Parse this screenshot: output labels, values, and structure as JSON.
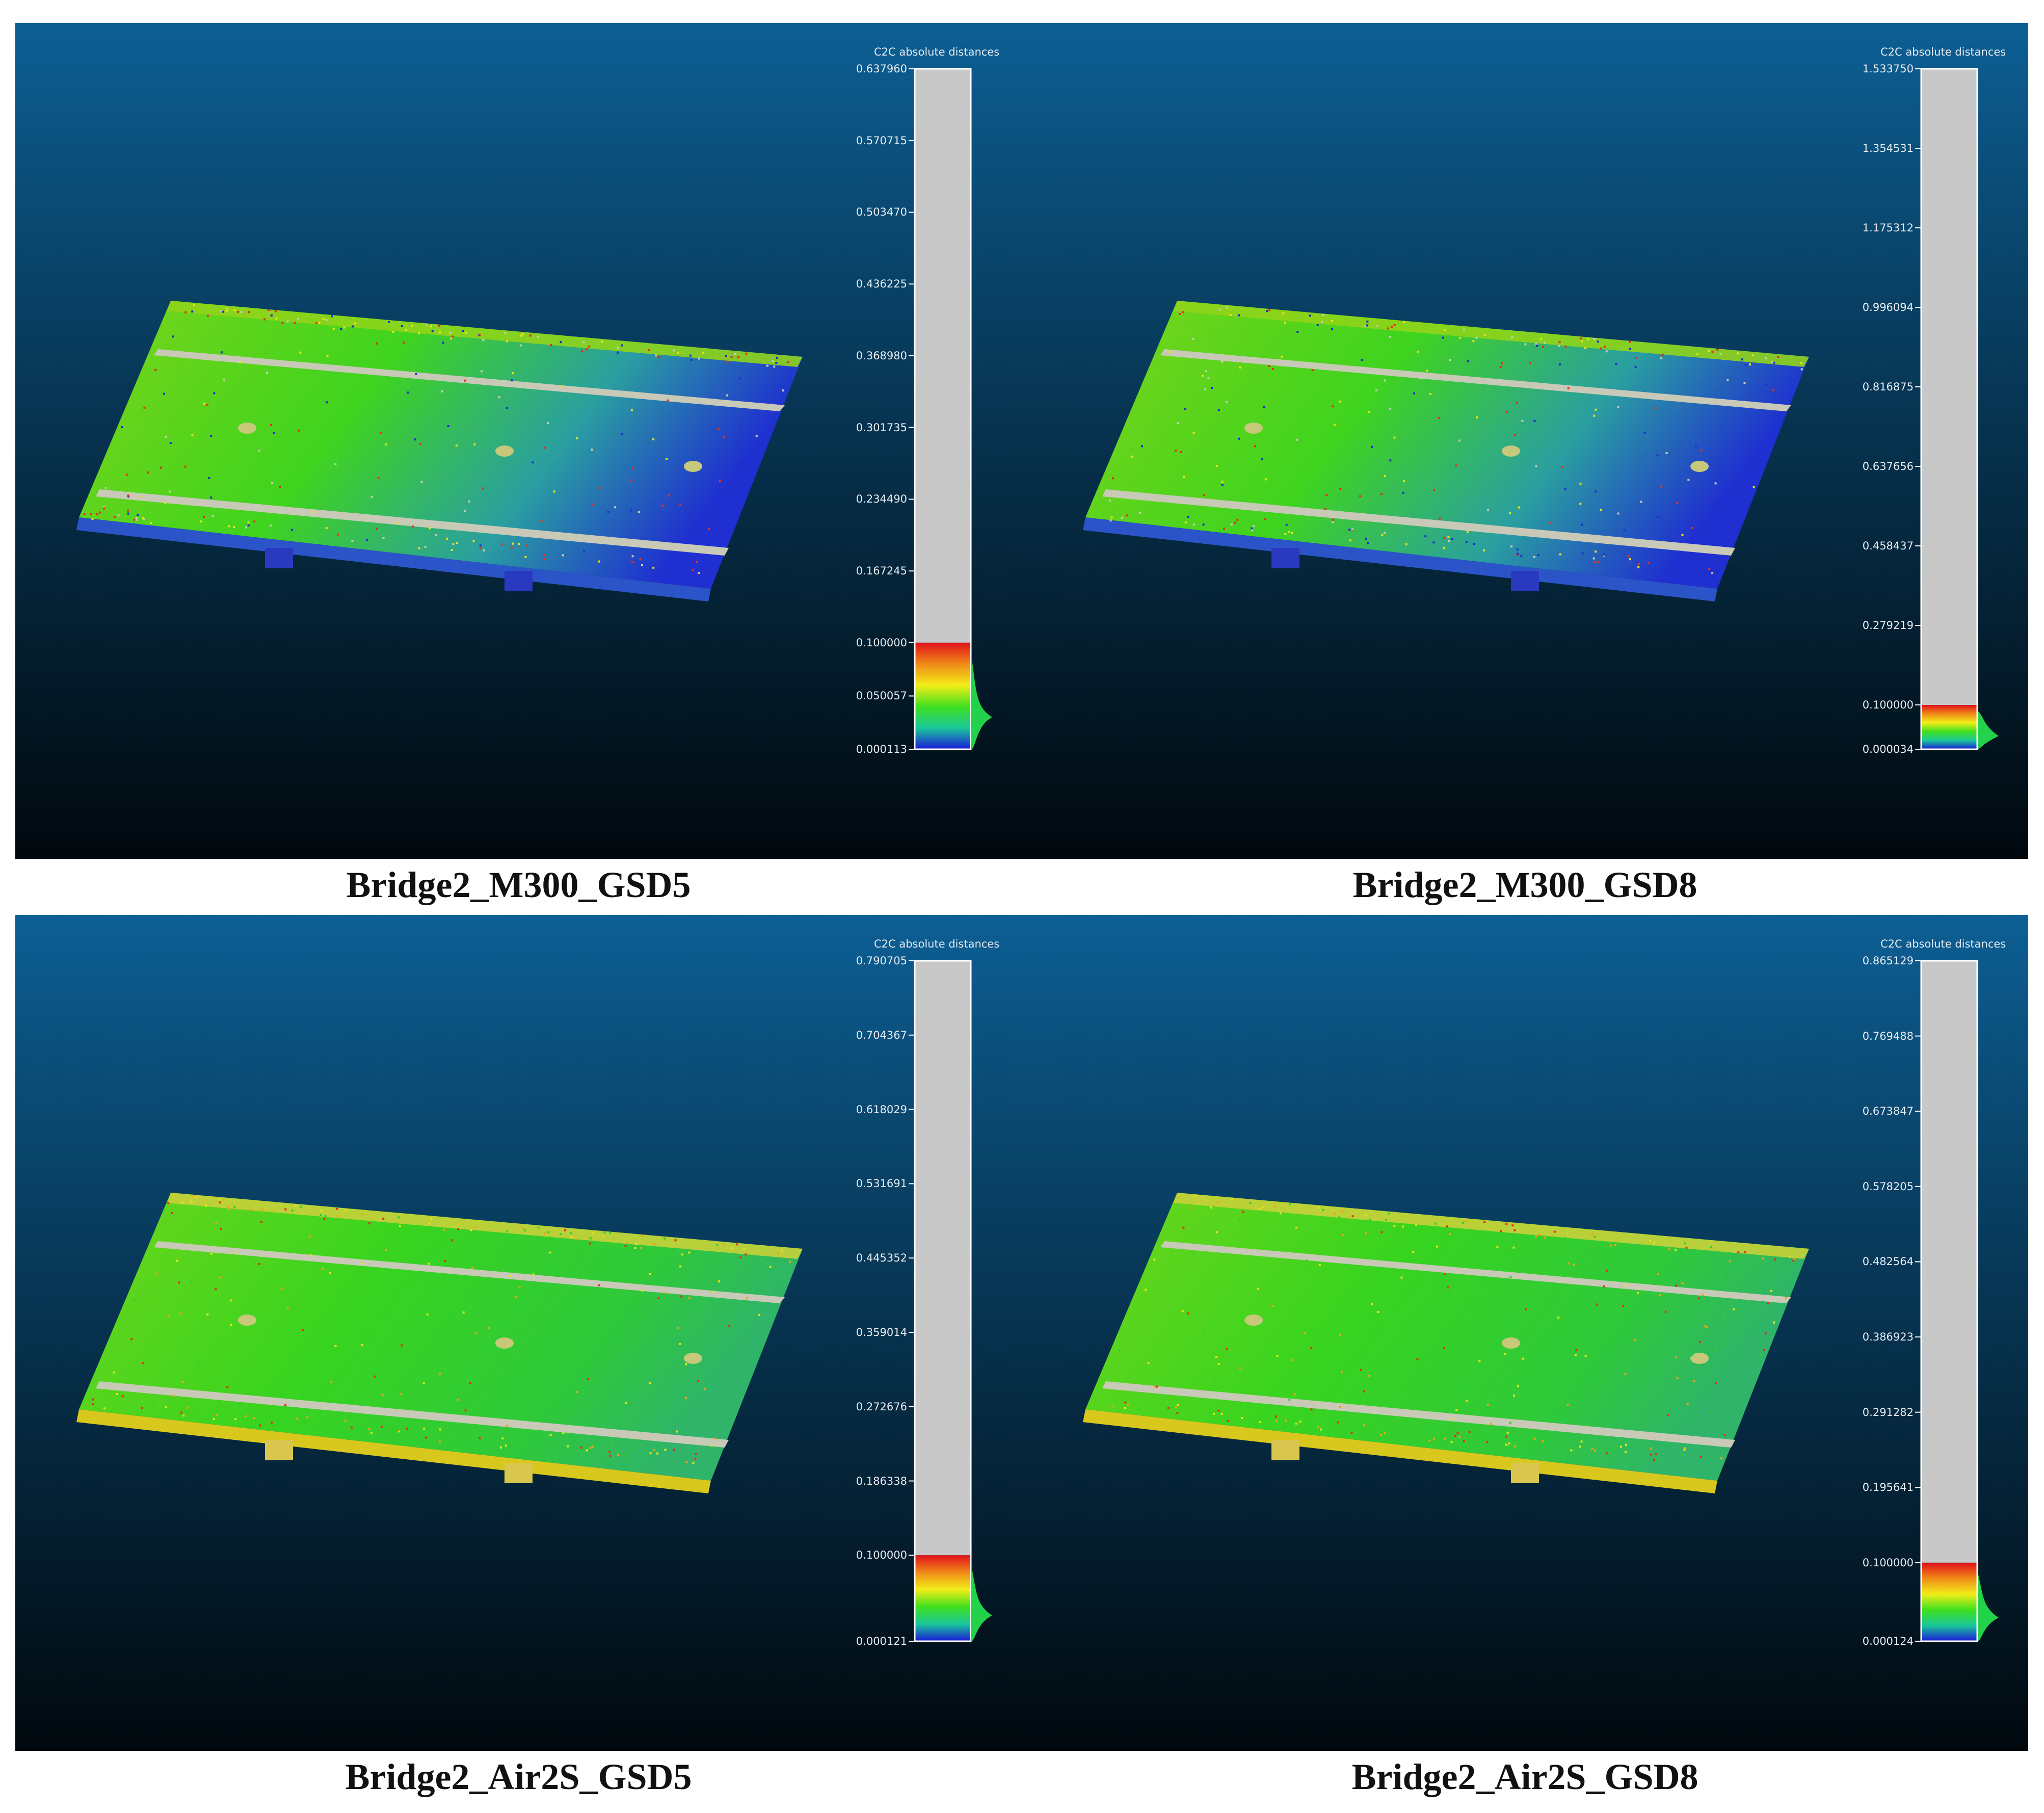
{
  "panels": [
    {
      "caption": "Bridge2_M300_GSD5",
      "scalar_bar": {
        "title": "C2C absolute distances",
        "ticks": [
          "0.637960",
          "0.570715",
          "0.503470",
          "0.436225",
          "0.368980",
          "0.301735",
          "0.234490",
          "0.167245",
          "0.100000",
          "0.050057",
          "0.000113"
        ],
        "max": 0.63796,
        "min": 0.000113,
        "colored_threshold": 0.1
      }
    },
    {
      "caption": "Bridge2_M300_GSD8",
      "scalar_bar": {
        "title": "C2C absolute distances",
        "ticks": [
          "1.533750",
          "1.354531",
          "1.175312",
          "0.996094",
          "0.816875",
          "0.637656",
          "0.458437",
          "0.279219",
          "0.100000",
          "0.000034"
        ],
        "max": 1.53375,
        "min": 3.4e-05,
        "colored_threshold": 0.1
      }
    },
    {
      "caption": "Bridge2_Air2S_GSD5",
      "scalar_bar": {
        "title": "C2C absolute distances",
        "ticks": [
          "0.790705",
          "0.704367",
          "0.618029",
          "0.531691",
          "0.445352",
          "0.359014",
          "0.272676",
          "0.186338",
          "0.100000",
          "0.000121"
        ],
        "max": 0.790705,
        "min": 0.000121,
        "colored_threshold": 0.1
      }
    },
    {
      "caption": "Bridge2_Air2S_GSD8",
      "scalar_bar": {
        "title": "C2C absolute distances",
        "ticks": [
          "0.865129",
          "0.769488",
          "0.673847",
          "0.578205",
          "0.482564",
          "0.386923",
          "0.291282",
          "0.195641",
          "0.100000",
          "0.000124"
        ],
        "max": 0.865129,
        "min": 0.000124,
        "colored_threshold": 0.1
      }
    }
  ],
  "colors": {
    "background_top": "#0d5f95",
    "background_bottom": "#01080d",
    "scale_gray": "#c8c8c8",
    "cloud_green": "#45d41a",
    "cloud_blue": "#1f2fd0",
    "cloud_red": "#e4321a",
    "lane_marking": "#c9c9b8"
  }
}
